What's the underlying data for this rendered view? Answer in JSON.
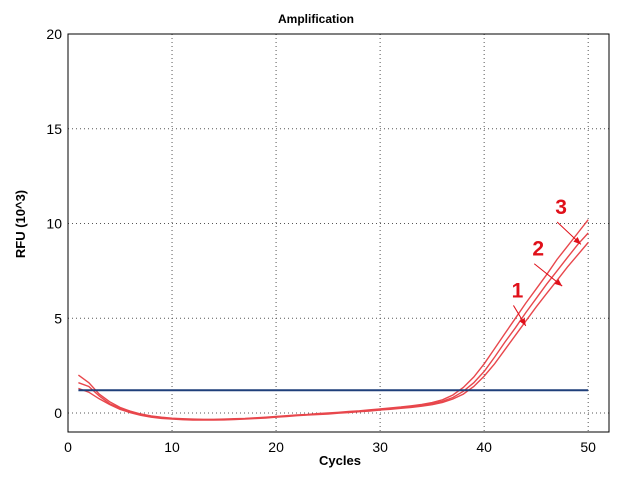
{
  "chart_data": {
    "type": "line",
    "title": "Amplification",
    "xlabel": "Cycles",
    "ylabel": "RFU (10^3)",
    "xlim": [
      0,
      52
    ],
    "ylim": [
      -1,
      20
    ],
    "xticks": [
      0,
      10,
      20,
      30,
      40,
      50
    ],
    "yticks": [
      0,
      5,
      10,
      15,
      20
    ],
    "grid": true,
    "threshold": {
      "value": 1.2,
      "color": "#1f3f7a"
    },
    "series_color": "#e8474c",
    "series": [
      {
        "x": [
          1,
          2,
          3,
          4,
          5,
          6,
          7,
          8,
          9,
          10,
          11,
          12,
          13,
          14,
          15,
          16,
          17,
          18,
          19,
          20,
          21,
          22,
          23,
          24,
          25,
          26,
          27,
          28,
          29,
          30,
          31,
          32,
          33,
          34,
          35,
          36,
          37,
          38,
          39,
          40,
          41,
          42,
          43,
          44,
          45,
          46,
          47,
          48,
          49,
          50
        ],
        "values": [
          2.0,
          1.6,
          1.0,
          0.6,
          0.3,
          0.1,
          -0.05,
          -0.15,
          -0.22,
          -0.27,
          -0.3,
          -0.32,
          -0.33,
          -0.33,
          -0.32,
          -0.3,
          -0.28,
          -0.25,
          -0.22,
          -0.18,
          -0.14,
          -0.1,
          -0.07,
          -0.03,
          0.0,
          0.04,
          0.08,
          0.12,
          0.17,
          0.22,
          0.27,
          0.32,
          0.38,
          0.45,
          0.55,
          0.7,
          0.95,
          1.35,
          1.9,
          2.6,
          3.4,
          4.2,
          5.0,
          5.8,
          6.55,
          7.3,
          8.1,
          8.8,
          9.5,
          10.2
        ]
      },
      {
        "x": [
          1,
          2,
          3,
          4,
          5,
          6,
          7,
          8,
          9,
          10,
          11,
          12,
          13,
          14,
          15,
          16,
          17,
          18,
          19,
          20,
          21,
          22,
          23,
          24,
          25,
          26,
          27,
          28,
          29,
          30,
          31,
          32,
          33,
          34,
          35,
          36,
          37,
          38,
          39,
          40,
          41,
          42,
          43,
          44,
          45,
          46,
          47,
          48,
          49,
          50
        ],
        "values": [
          1.6,
          1.4,
          0.9,
          0.5,
          0.25,
          0.05,
          -0.1,
          -0.2,
          -0.25,
          -0.3,
          -0.33,
          -0.35,
          -0.35,
          -0.35,
          -0.34,
          -0.32,
          -0.3,
          -0.27,
          -0.24,
          -0.2,
          -0.16,
          -0.12,
          -0.09,
          -0.05,
          -0.02,
          0.02,
          0.06,
          0.1,
          0.14,
          0.19,
          0.24,
          0.29,
          0.34,
          0.4,
          0.5,
          0.62,
          0.82,
          1.15,
          1.6,
          2.2,
          2.95,
          3.75,
          4.5,
          5.3,
          6.05,
          6.8,
          7.5,
          8.2,
          8.9,
          9.5
        ]
      },
      {
        "x": [
          1,
          2,
          3,
          4,
          5,
          6,
          7,
          8,
          9,
          10,
          11,
          12,
          13,
          14,
          15,
          16,
          17,
          18,
          19,
          20,
          21,
          22,
          23,
          24,
          25,
          26,
          27,
          28,
          29,
          30,
          31,
          32,
          33,
          34,
          35,
          36,
          37,
          38,
          39,
          40,
          41,
          42,
          43,
          44,
          45,
          46,
          47,
          48,
          49,
          50
        ],
        "values": [
          1.3,
          1.1,
          0.75,
          0.45,
          0.2,
          0.02,
          -0.12,
          -0.22,
          -0.28,
          -0.32,
          -0.35,
          -0.37,
          -0.37,
          -0.37,
          -0.36,
          -0.34,
          -0.32,
          -0.29,
          -0.26,
          -0.22,
          -0.18,
          -0.14,
          -0.11,
          -0.08,
          -0.05,
          -0.01,
          0.03,
          0.07,
          0.11,
          0.16,
          0.2,
          0.25,
          0.3,
          0.36,
          0.44,
          0.56,
          0.74,
          1.0,
          1.4,
          1.95,
          2.6,
          3.35,
          4.1,
          4.85,
          5.6,
          6.3,
          7.0,
          7.7,
          8.35,
          9.0
        ]
      }
    ],
    "annotations": [
      {
        "text": "1",
        "x": 43.2,
        "y": 6.1,
        "arrow_to": [
          44,
          4.6
        ]
      },
      {
        "text": "2",
        "x": 45.2,
        "y": 8.3,
        "arrow_to": [
          47.5,
          6.7
        ]
      },
      {
        "text": "3",
        "x": 47.4,
        "y": 10.5,
        "arrow_to": [
          49.3,
          8.9
        ]
      }
    ],
    "annotation_color": "#e0101a"
  }
}
